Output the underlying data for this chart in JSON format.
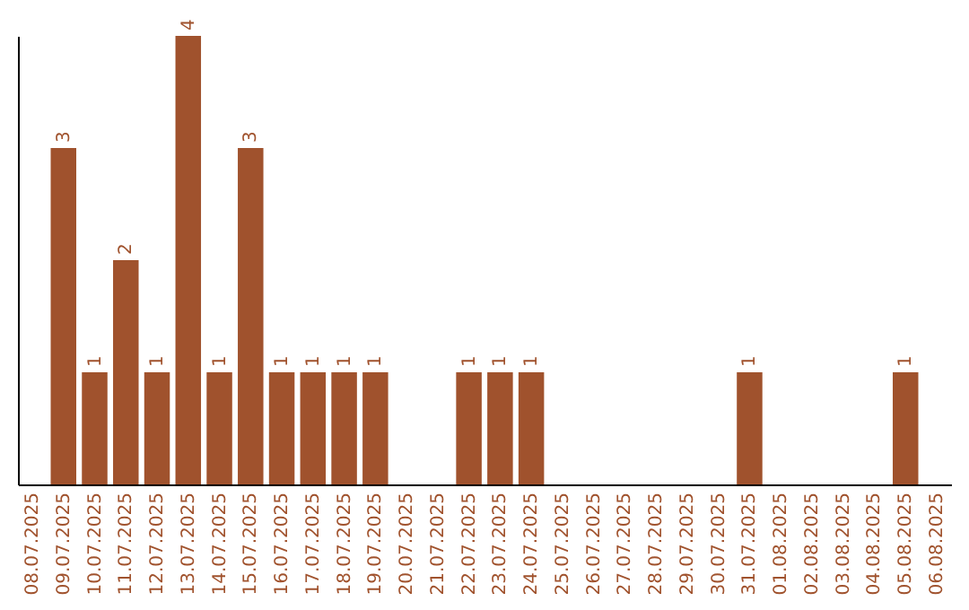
{
  "chart_data": {
    "type": "bar",
    "categories": [
      "08.07.2025",
      "09.07.2025",
      "10.07.2025",
      "11.07.2025",
      "12.07.2025",
      "13.07.2025",
      "14.07.2025",
      "15.07.2025",
      "16.07.2025",
      "17.07.2025",
      "18.07.2025",
      "19.07.2025",
      "20.07.2025",
      "21.07.2025",
      "22.07.2025",
      "23.07.2025",
      "24.07.2025",
      "25.07.2025",
      "26.07.2025",
      "27.07.2025",
      "28.07.2025",
      "29.07.2025",
      "30.07.2025",
      "31.07.2025",
      "01.08.2025",
      "02.08.2025",
      "03.08.2025",
      "04.08.2025",
      "05.08.2025",
      "06.08.2025"
    ],
    "values": [
      0,
      3,
      1,
      2,
      1,
      4,
      1,
      3,
      1,
      1,
      1,
      1,
      0,
      0,
      1,
      1,
      1,
      0,
      0,
      0,
      0,
      0,
      0,
      1,
      0,
      0,
      0,
      0,
      1,
      0
    ],
    "value_labels": [
      null,
      "3",
      "1",
      "2",
      "1",
      "4",
      "1",
      "3",
      "1",
      "1",
      "1",
      "1",
      null,
      null,
      "1",
      "1",
      "1",
      null,
      null,
      null,
      null,
      null,
      null,
      "1",
      null,
      null,
      null,
      null,
      "1",
      null
    ],
    "color": "#a0522d"
  }
}
